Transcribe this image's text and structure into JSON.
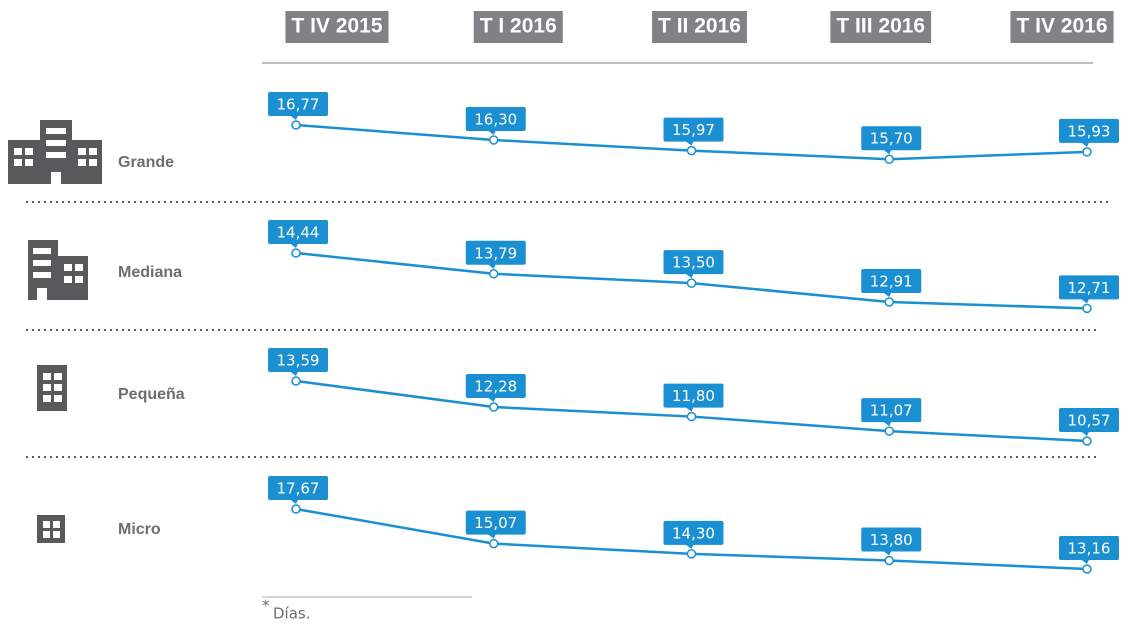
{
  "chart_data": {
    "type": "line",
    "categories": [
      "T IV 2015",
      "T I 2016",
      "T II 2016",
      "T III 2016",
      "T IV 2016"
    ],
    "series": [
      {
        "name": "Grande",
        "color": "#1a8fd1",
        "values": [
          16.77,
          16.3,
          15.97,
          15.7,
          15.93
        ],
        "value_labels": [
          "16,77",
          "16,30",
          "15,97",
          "15,70",
          "15,93"
        ]
      },
      {
        "name": "Mediana",
        "color": "#1a8fd1",
        "values": [
          14.44,
          13.79,
          13.5,
          12.91,
          12.71
        ],
        "value_labels": [
          "14,44",
          "13,79",
          "13,50",
          "12,91",
          "12,71"
        ]
      },
      {
        "name": "Pequeña",
        "color": "#1a8fd1",
        "values": [
          13.59,
          12.28,
          11.8,
          11.07,
          10.57
        ],
        "value_labels": [
          "13,59",
          "12,28",
          "11,80",
          "11,07",
          "10,57"
        ]
      },
      {
        "name": "Micro",
        "color": "#1a8fd1",
        "values": [
          17.67,
          15.07,
          14.3,
          13.8,
          13.16
        ],
        "value_labels": [
          "17,67",
          "15,07",
          "14,30",
          "13,80",
          "13,16"
        ]
      }
    ]
  },
  "footnote_marker": "*",
  "footnote": "Días."
}
